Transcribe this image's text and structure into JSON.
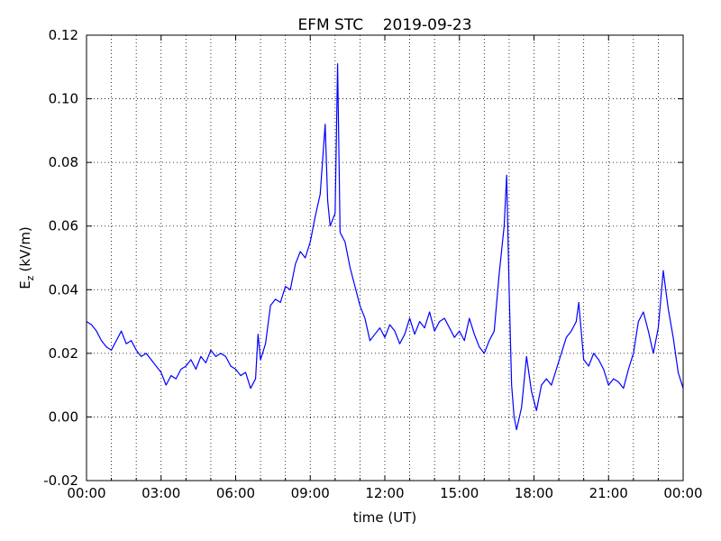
{
  "chart_data": {
    "type": "line",
    "title": "EFM STC    2019-09-23",
    "xlabel": "time (UT)",
    "ylabel": "E",
    "ylabel_sub": "z",
    "ylabel_unit": "(kV/m)",
    "xlim": [
      0,
      24
    ],
    "ylim": [
      -0.02,
      0.12
    ],
    "xticks": [
      {
        "value": 0,
        "label": "00:00"
      },
      {
        "value": 3,
        "label": "03:00"
      },
      {
        "value": 6,
        "label": "06:00"
      },
      {
        "value": 9,
        "label": "09:00"
      },
      {
        "value": 12,
        "label": "12:00"
      },
      {
        "value": 15,
        "label": "15:00"
      },
      {
        "value": 18,
        "label": "18:00"
      },
      {
        "value": 21,
        "label": "21:00"
      },
      {
        "value": 24,
        "label": "00:00"
      }
    ],
    "xminorticks": [
      1,
      2,
      4,
      5,
      7,
      8,
      10,
      11,
      13,
      14,
      16,
      17,
      19,
      20,
      22,
      23
    ],
    "yticks": [
      {
        "value": -0.02,
        "label": "-0.02"
      },
      {
        "value": 0,
        "label": "0.00"
      },
      {
        "value": 0.02,
        "label": "0.02"
      },
      {
        "value": 0.04,
        "label": "0.04"
      },
      {
        "value": 0.06,
        "label": "0.06"
      },
      {
        "value": 0.08,
        "label": "0.08"
      },
      {
        "value": 0.1,
        "label": "0.10"
      },
      {
        "value": 0.12,
        "label": "0.12"
      }
    ],
    "grid": true,
    "series": [
      {
        "color": "#0000ff",
        "x": [
          0.0,
          0.2,
          0.4,
          0.6,
          0.8,
          1.0,
          1.2,
          1.4,
          1.6,
          1.8,
          2.0,
          2.2,
          2.4,
          2.6,
          2.8,
          3.0,
          3.2,
          3.4,
          3.6,
          3.8,
          4.0,
          4.2,
          4.4,
          4.6,
          4.8,
          5.0,
          5.2,
          5.4,
          5.6,
          5.8,
          6.0,
          6.2,
          6.4,
          6.6,
          6.8,
          6.9,
          7.0,
          7.2,
          7.4,
          7.6,
          7.8,
          8.0,
          8.2,
          8.4,
          8.6,
          8.8,
          9.0,
          9.2,
          9.4,
          9.6,
          9.7,
          9.8,
          10.0,
          10.1,
          10.2,
          10.4,
          10.6,
          10.8,
          11.0,
          11.2,
          11.4,
          11.6,
          11.8,
          12.0,
          12.2,
          12.4,
          12.6,
          12.8,
          13.0,
          13.2,
          13.4,
          13.6,
          13.8,
          14.0,
          14.2,
          14.4,
          14.6,
          14.8,
          15.0,
          15.2,
          15.4,
          15.6,
          15.8,
          16.0,
          16.2,
          16.4,
          16.6,
          16.8,
          16.9,
          17.0,
          17.1,
          17.2,
          17.3,
          17.5,
          17.7,
          17.9,
          18.1,
          18.3,
          18.5,
          18.7,
          18.9,
          19.1,
          19.3,
          19.5,
          19.7,
          19.8,
          20.0,
          20.2,
          20.4,
          20.6,
          20.8,
          21.0,
          21.2,
          21.4,
          21.6,
          21.8,
          22.0,
          22.2,
          22.4,
          22.6,
          22.8,
          23.0,
          23.2,
          23.4,
          23.6,
          23.8,
          24.0
        ],
        "values": [
          0.03,
          0.029,
          0.027,
          0.024,
          0.022,
          0.021,
          0.024,
          0.027,
          0.023,
          0.024,
          0.021,
          0.019,
          0.02,
          0.018,
          0.016,
          0.014,
          0.01,
          0.013,
          0.012,
          0.015,
          0.016,
          0.018,
          0.015,
          0.019,
          0.017,
          0.021,
          0.019,
          0.02,
          0.019,
          0.016,
          0.015,
          0.013,
          0.014,
          0.009,
          0.012,
          0.026,
          0.018,
          0.023,
          0.035,
          0.037,
          0.036,
          0.041,
          0.04,
          0.048,
          0.052,
          0.05,
          0.055,
          0.063,
          0.07,
          0.092,
          0.068,
          0.06,
          0.064,
          0.111,
          0.058,
          0.055,
          0.047,
          0.041,
          0.035,
          0.031,
          0.024,
          0.026,
          0.028,
          0.025,
          0.029,
          0.027,
          0.023,
          0.026,
          0.031,
          0.026,
          0.03,
          0.028,
          0.033,
          0.027,
          0.03,
          0.031,
          0.028,
          0.025,
          0.027,
          0.024,
          0.031,
          0.026,
          0.022,
          0.02,
          0.024,
          0.027,
          0.045,
          0.06,
          0.076,
          0.04,
          0.01,
          0.0,
          -0.004,
          0.003,
          0.019,
          0.008,
          0.002,
          0.01,
          0.012,
          0.01,
          0.015,
          0.02,
          0.025,
          0.027,
          0.03,
          0.036,
          0.018,
          0.016,
          0.02,
          0.018,
          0.015,
          0.01,
          0.012,
          0.011,
          0.009,
          0.015,
          0.02,
          0.03,
          0.033,
          0.027,
          0.02,
          0.028,
          0.046,
          0.034,
          0.025,
          0.014,
          0.009
        ]
      }
    ]
  }
}
